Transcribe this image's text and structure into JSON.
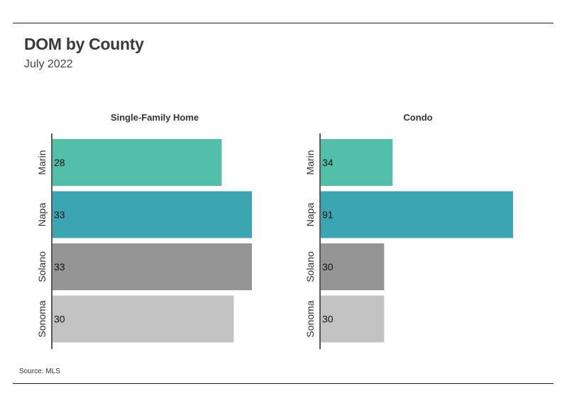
{
  "header": {
    "title": "DOM by County",
    "subtitle": "July 2022",
    "source": "Source:  MLS"
  },
  "chart_data": [
    {
      "type": "bar",
      "orientation": "horizontal",
      "title": "Single-Family Home",
      "categories": [
        "Marin",
        "Napa",
        "Solano",
        "Sonoma"
      ],
      "values": [
        28,
        33,
        33,
        30
      ],
      "xlim": [
        0,
        33
      ],
      "colors": [
        "#52bfab",
        "#3ba6b2",
        "#959595",
        "#c3c3c3"
      ]
    },
    {
      "type": "bar",
      "orientation": "horizontal",
      "title": "Condo",
      "categories": [
        "Marin",
        "Napa",
        "Solano",
        "Sonoma"
      ],
      "values": [
        34,
        91,
        30,
        30
      ],
      "xlim": [
        0,
        91
      ],
      "colors": [
        "#52bfab",
        "#3ba6b2",
        "#959595",
        "#c3c3c3"
      ]
    }
  ]
}
